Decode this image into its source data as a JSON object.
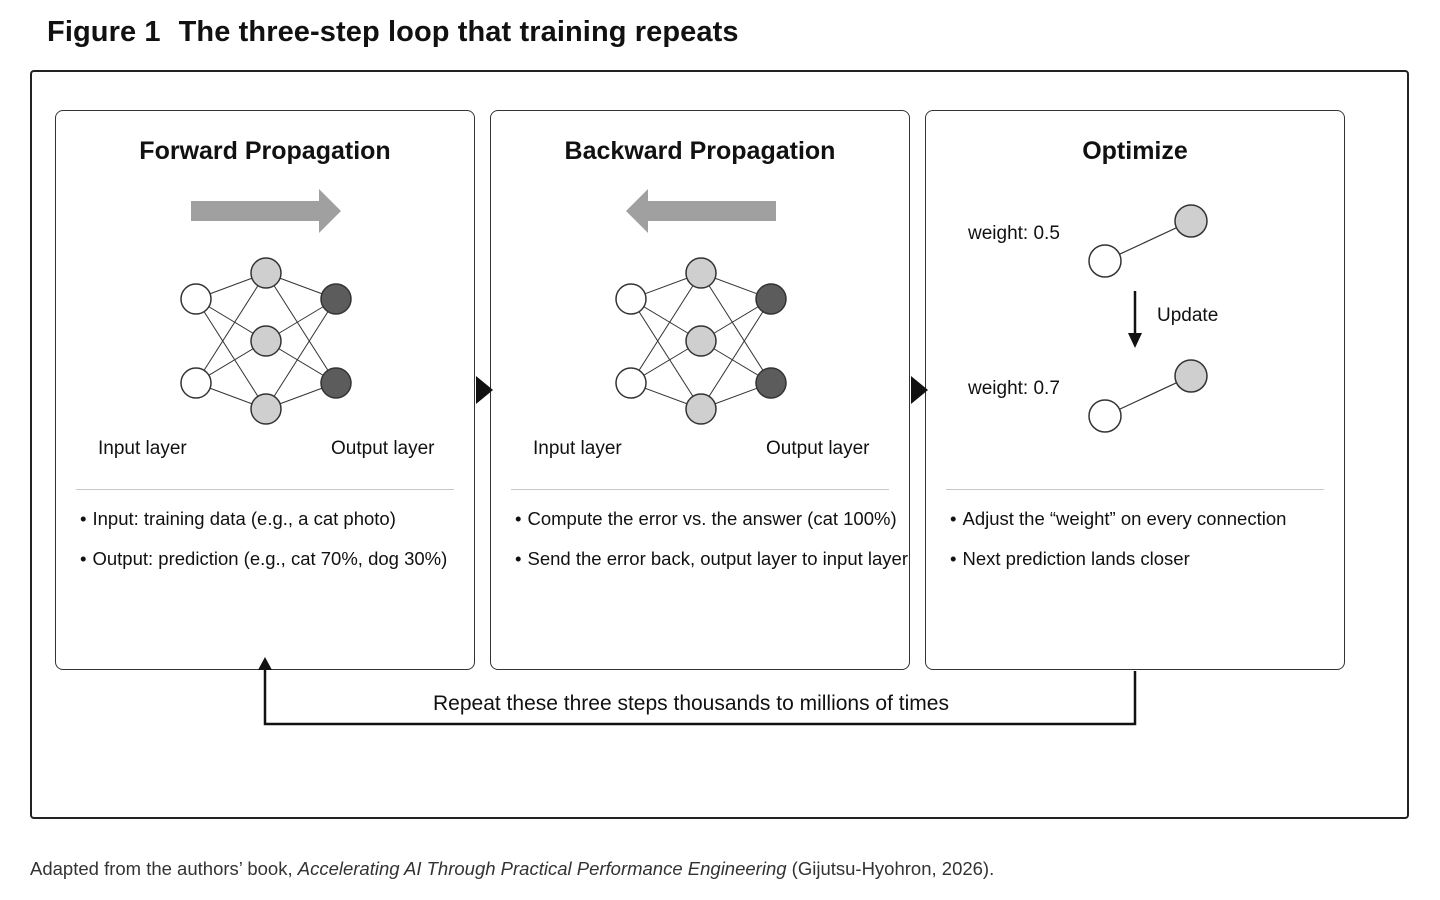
{
  "figure": {
    "label": "Figure 1",
    "title": "The three-step loop that training repeats"
  },
  "panels": {
    "forward": {
      "title": "Forward Propagation",
      "input_label": "Input layer",
      "output_label": "Output layer",
      "bullets": [
        "Input: training data (e.g., a cat photo)",
        "Output: prediction (e.g., cat 70%, dog 30%)"
      ]
    },
    "backward": {
      "title": "Backward Propagation",
      "input_label": "Input layer",
      "output_label": "Output layer",
      "bullets": [
        "Compute the error vs. the answer (cat 100%)",
        "Send the error back, output layer to input layer"
      ]
    },
    "optimize": {
      "title": "Optimize",
      "weight_before": "weight: 0.5",
      "weight_after": "weight: 0.7",
      "update_label": "Update",
      "bullets": [
        "Adjust the “weight” on every connection",
        "Next prediction lands closer"
      ]
    }
  },
  "loop_label": "Repeat these three steps thousands to millions of times",
  "caption": {
    "prefix": "Adapted from the authors’ book, ",
    "book": "Accelerating AI Through Practical Performance Engineering",
    "suffix": " (Gijutsu-Hyohron, 2026)."
  },
  "bullet_char": "•",
  "colors": {
    "arrow_fill": "#a0a0a0",
    "input_node": "#ffffff",
    "hidden_node": "#cfcfcf",
    "output_node": "#5c5c5c",
    "separator": "#c8c8c8"
  },
  "icons": {
    "forward_arrow": "right-arrow-icon",
    "backward_arrow": "left-arrow-icon",
    "update_arrow": "down-arrow-icon"
  }
}
